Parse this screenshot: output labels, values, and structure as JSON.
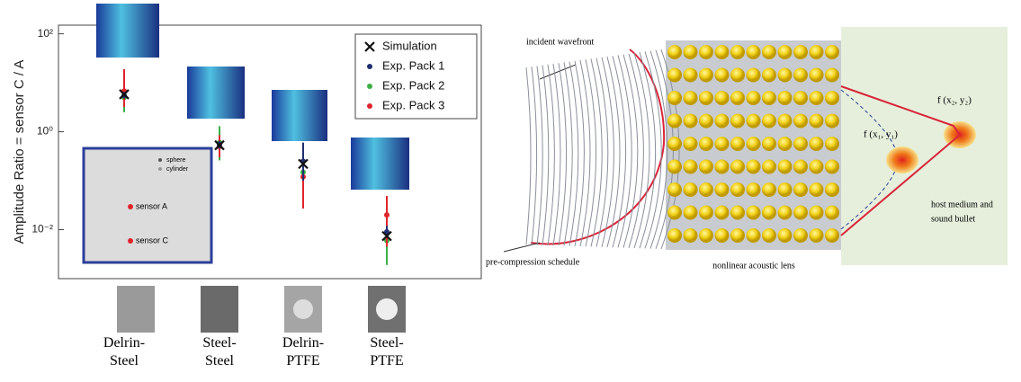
{
  "chart_data": {
    "type": "errorbar",
    "ylabel": "Amplitude Ratio = sensor C / A",
    "log_y": true,
    "categories": [
      "Delrin-Steel",
      "Steel-Steel",
      "Delrin-PTFE",
      "Steel-PTFE"
    ],
    "ylim": [
      0.001,
      150
    ],
    "yticks": [
      {
        "value": 100,
        "label": "10²"
      },
      {
        "value": 1,
        "label": "10⁰"
      },
      {
        "value": 0.01,
        "label": "10⁻²"
      }
    ],
    "legend": "upper right",
    "series": [
      {
        "name": "Simulation",
        "color": "#111111",
        "marker": "x",
        "values": [
          5.8,
          0.53,
          0.22,
          0.0074
        ]
      },
      {
        "name": "Exp. Pack 1",
        "color": "#1f2f6f",
        "marker": "dot",
        "values": [
          5.5,
          0.55,
          0.25,
          0.009
        ],
        "lower": [
          4.8,
          0.45,
          0.1,
          0.007
        ],
        "upper": [
          6.5,
          0.65,
          0.6,
          0.012
        ]
      },
      {
        "name": "Exp. Pack 2",
        "color": "#3cb043",
        "marker": "dot",
        "values": [
          5,
          0.6,
          0.15,
          0.006
        ],
        "lower": [
          2.5,
          0.26,
          0.056,
          0.0019
        ],
        "upper": [
          8.4,
          1.3,
          0.37,
          0.019
        ]
      },
      {
        "name": "Exp. Pack 3",
        "color": "#e0242c",
        "marker": "dot",
        "values": [
          6.8,
          0.5,
          0.12,
          0.02
        ],
        "lower": [
          3.2,
          0.3,
          0.027,
          0.0045
        ],
        "upper": [
          19,
          0.85,
          0.51,
          0.049
        ]
      }
    ]
  },
  "inset": {
    "legend": [
      "sphere",
      "cylinder"
    ],
    "sensors": [
      "sensor A",
      "sensor C"
    ]
  },
  "diagram": {
    "incident": "incident wavefront",
    "schedule": "pre-compression schedule",
    "lens": "nonlinear acoustic lens",
    "medium": [
      "host medium and",
      "sound bullet"
    ],
    "focus1": "f (x₁, y₁)",
    "focus2": "f (x₂, y₂)"
  }
}
